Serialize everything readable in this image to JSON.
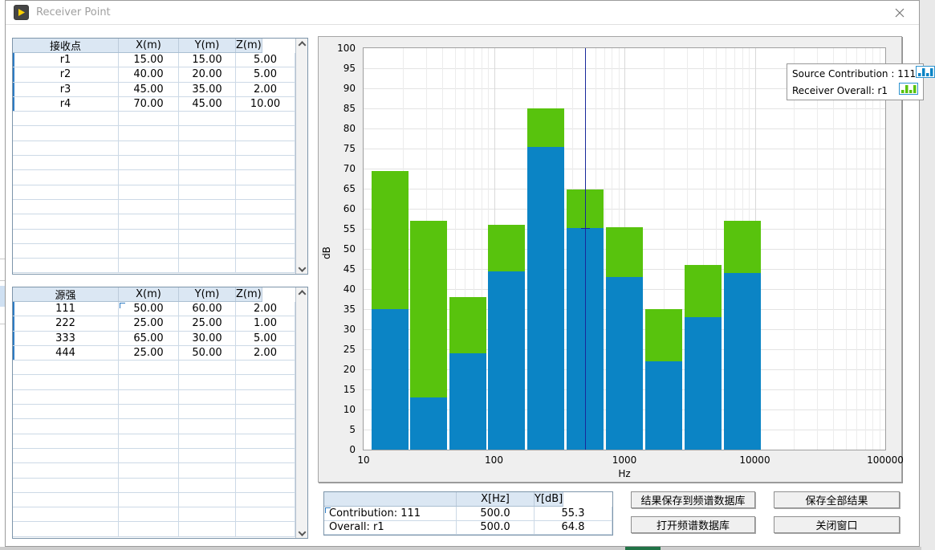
{
  "window": {
    "title": "Receiver Point"
  },
  "receiver_table": {
    "headers": [
      "接收点",
      "X(m)",
      "Y(m)",
      "Z(m)"
    ],
    "rows": [
      [
        "r1",
        "15.00",
        "15.00",
        "5.00"
      ],
      [
        "r2",
        "40.00",
        "20.00",
        "5.00"
      ],
      [
        "r3",
        "45.00",
        "35.00",
        "2.00"
      ],
      [
        "r4",
        "70.00",
        "45.00",
        "10.00"
      ]
    ]
  },
  "source_table": {
    "headers": [
      "源强",
      "X(m)",
      "Y(m)",
      "Z(m)"
    ],
    "rows": [
      [
        "111",
        "50.00",
        "60.00",
        "2.00"
      ],
      [
        "222",
        "25.00",
        "25.00",
        "1.00"
      ],
      [
        "333",
        "65.00",
        "30.00",
        "5.00"
      ],
      [
        "444",
        "25.00",
        "50.00",
        "2.00"
      ]
    ]
  },
  "chart_data": {
    "type": "bar",
    "stacked": true,
    "x_scale": "log",
    "xlim": [
      10,
      100000
    ],
    "ylim": [
      0,
      100
    ],
    "y_tick_step": 5,
    "x_ticks": [
      "10",
      "100",
      "1000",
      "10000",
      "100000"
    ],
    "xlabel": "Hz",
    "ylabel": "dB",
    "grid": true,
    "legend_position": "top-right",
    "categories_hz": [
      16,
      31.5,
      63,
      125,
      250,
      500,
      1000,
      2000,
      4000,
      8000
    ],
    "series": [
      {
        "name": "Source Contribution : 111",
        "color": "#0b84c5",
        "values": [
          35,
          13,
          24,
          44.5,
          75.5,
          55.3,
          43,
          22,
          33,
          44
        ]
      },
      {
        "name": "Receiver Overall: r1",
        "color": "#58c30d",
        "values": [
          69.5,
          57,
          38,
          56,
          85,
          64.8,
          55.5,
          35,
          46,
          57
        ]
      }
    ],
    "cursor": {
      "x_hz": 500,
      "y_db": 55.3
    }
  },
  "cursor_table": {
    "headers": [
      "",
      "X[Hz]",
      "Y[dB]"
    ],
    "rows": [
      [
        "Contribution: 111",
        "500.0",
        "55.3"
      ],
      [
        "Overall: r1",
        "500.0",
        "64.8"
      ]
    ]
  },
  "buttons": {
    "save_to_db": "结果保存到频谱数据库",
    "save_all": "保存全部结果",
    "open_db": "打开频谱数据库",
    "close_win": "关闭窗口"
  }
}
